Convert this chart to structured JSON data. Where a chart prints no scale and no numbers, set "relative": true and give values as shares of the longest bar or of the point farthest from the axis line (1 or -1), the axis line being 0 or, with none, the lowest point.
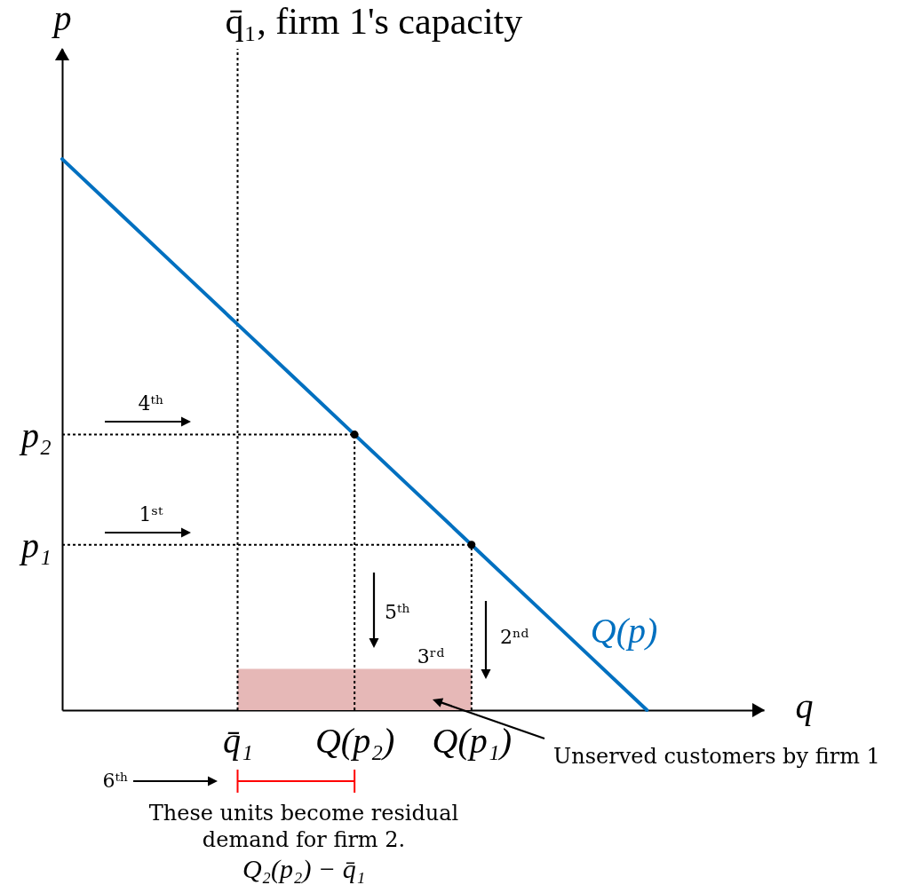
{
  "chart_data": {
    "type": "line",
    "relative": true,
    "xlabel": "q",
    "ylabel": "p",
    "grid": false,
    "categories": [
      null,
      null,
      null,
      "q̄₁",
      null,
      "Q(p₂)",
      null,
      "Q(p₁)",
      null,
      null,
      null,
      null,
      null
    ],
    "series": [
      {
        "name": "Q(p)",
        "color": "#0070c0",
        "values": [
          1,
          0.9,
          0.8,
          0.7,
          0.6,
          0.5,
          0.4,
          0.3,
          0.2,
          0.1,
          0,
          null,
          null
        ]
      },
      {
        "type": "lollipop",
        "color": "#000000",
        "line_style": "dotted",
        "values": [
          null,
          null,
          null,
          null,
          null,
          0.5,
          null,
          0.3,
          null,
          null,
          null,
          null,
          null
        ]
      },
      {
        "type": "area",
        "color": "#e6b8b7",
        "values": [
          null,
          null,
          null,
          0.075,
          0.075,
          0.075,
          0.075,
          0.075,
          null,
          null,
          null,
          null,
          null
        ]
      }
    ],
    "ref_lines": [
      {
        "axis": "y",
        "value": 0.5,
        "label": "p₂",
        "line_style": "dotted",
        "color": "#000000"
      },
      {
        "axis": "y",
        "value": 0.3,
        "label": "p₁",
        "line_style": "dotted",
        "color": "#000000"
      },
      {
        "axis": "x",
        "value": "q̄₁",
        "label": "q̄₁, firm 1's capacity",
        "line_style": "dotted",
        "color": "#000000"
      }
    ],
    "annotations": [
      "4ᵗʰ",
      "1ˢᵗ",
      "5ᵗʰ",
      "2ⁿᵈ",
      "3ʳᵈ",
      "6ᵗʰ",
      "Unserved customers by firm 1",
      "These units become residual demand for firm 2.",
      "Q₂(p₂) − q̄₁"
    ]
  }
}
